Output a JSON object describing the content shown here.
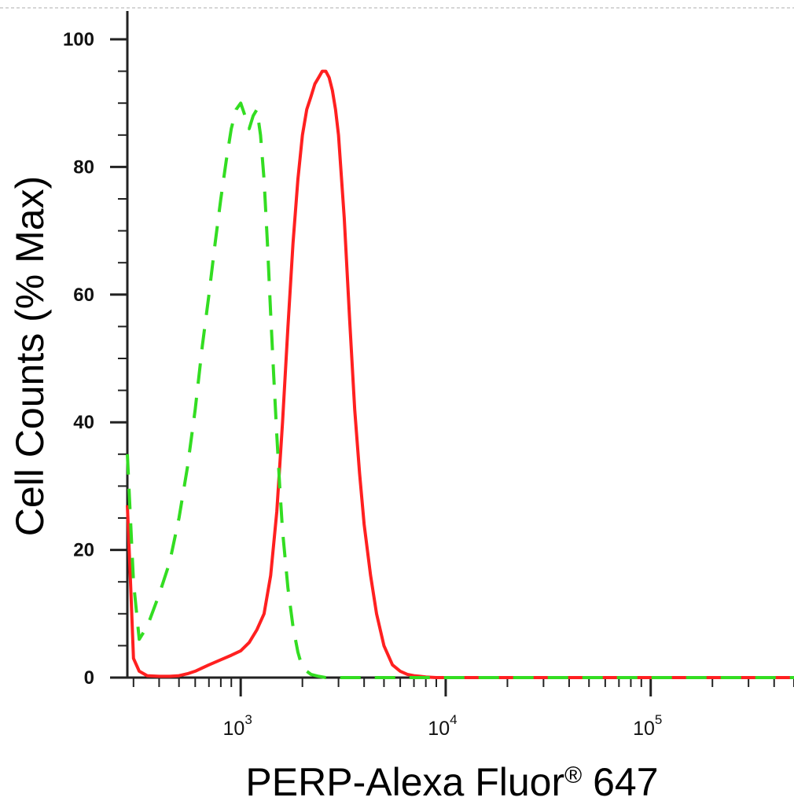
{
  "chart_data": {
    "type": "line",
    "xlabel": "PERP-Alexa Fluor",
    "xlabel_superscript": "®",
    "xlabel_suffix": " 647",
    "ylabel": "Cell Counts (% Max)",
    "x_scale": "log",
    "xlim": [
      280,
      500000
    ],
    "ylim": [
      0,
      100
    ],
    "y_ticks": [
      0,
      20,
      40,
      60,
      80,
      100
    ],
    "x_major_ticks": [
      {
        "value": 1000,
        "base": "10",
        "exp": "3"
      },
      {
        "value": 10000,
        "base": "10",
        "exp": "4"
      },
      {
        "value": 100000,
        "base": "10",
        "exp": "5"
      }
    ],
    "grid": false,
    "legend": "none",
    "series": [
      {
        "color": "#ff2020",
        "line_style": "solid",
        "x": [
          280,
          290,
          300,
          320,
          350,
          400,
          450,
          500,
          550,
          600,
          700,
          800,
          900,
          1000,
          1100,
          1200,
          1300,
          1400,
          1500,
          1600,
          1700,
          1800,
          1900,
          2000,
          2100,
          2200,
          2300,
          2400,
          2500,
          2600,
          2700,
          2800,
          2900,
          3000,
          3200,
          3400,
          3600,
          3800,
          4000,
          4300,
          4600,
          5000,
          5500,
          6000,
          6500,
          7000,
          7500,
          8000,
          9000,
          10000,
          20000,
          50000,
          100000,
          200000,
          500000
        ],
        "y": [
          27,
          15,
          3,
          1,
          0.3,
          0.2,
          0.2,
          0.3,
          0.6,
          1,
          2,
          2.8,
          3.5,
          4.2,
          5.5,
          7.5,
          10,
          16,
          26,
          40,
          55,
          68,
          78,
          85,
          89,
          91,
          93,
          94,
          95,
          95,
          94,
          92,
          89,
          85,
          72,
          56,
          42,
          32,
          24,
          16,
          10,
          5,
          2,
          1,
          0.5,
          0.3,
          0.2,
          0.1,
          0,
          0,
          0,
          0,
          0,
          0,
          0
        ]
      },
      {
        "color": "#33dd22",
        "line_style": "dashed",
        "x": [
          280,
          300,
          320,
          350,
          400,
          450,
          500,
          550,
          600,
          650,
          700,
          750,
          800,
          850,
          900,
          950,
          1000,
          1050,
          1100,
          1150,
          1200,
          1250,
          1300,
          1350,
          1400,
          1450,
          1500,
          1550,
          1600,
          1700,
          1800,
          1900,
          2000,
          2200,
          2400,
          2600,
          3000,
          5000,
          10000,
          100000,
          500000
        ],
        "y": [
          35,
          15,
          6,
          8,
          13,
          18,
          25,
          33,
          42,
          52,
          60,
          68,
          75,
          81,
          86,
          89,
          90,
          88,
          86,
          88,
          89,
          85,
          78,
          68,
          57,
          47,
          38,
          30,
          23,
          14,
          8,
          4,
          1.5,
          0.5,
          0.2,
          0,
          0,
          0,
          0,
          0,
          0
        ]
      }
    ]
  }
}
